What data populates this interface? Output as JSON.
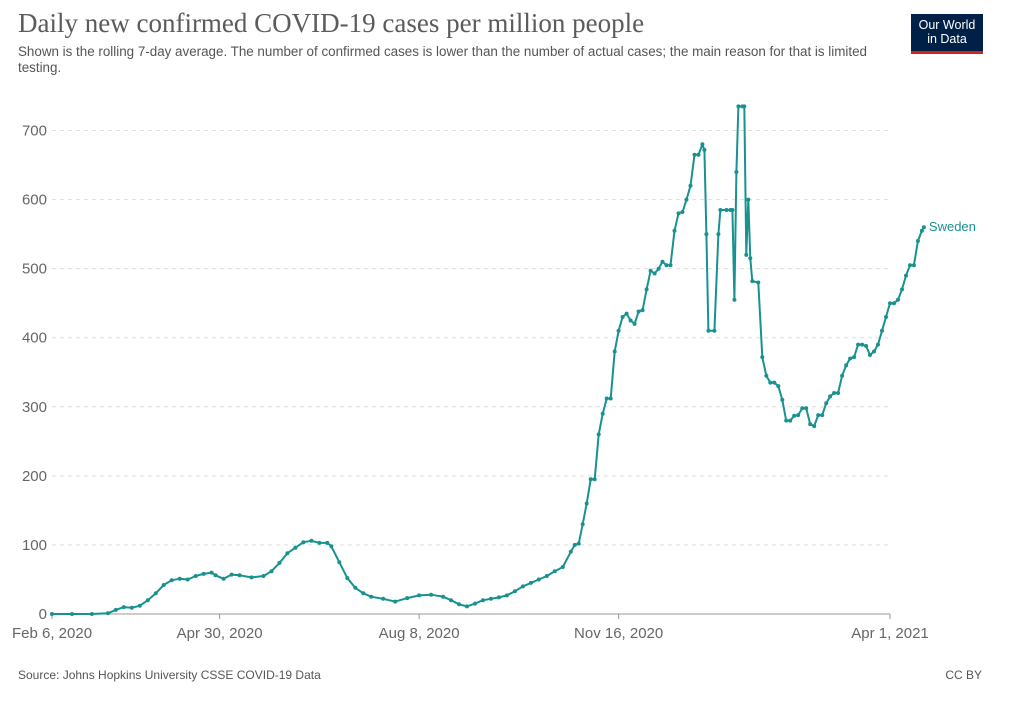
{
  "header": {
    "title": "Daily new confirmed COVID-19 cases per million people",
    "subtitle": "Shown is the rolling 7-day average. The number of confirmed cases is lower than the number of actual cases; the main reason for that is limited testing.",
    "logo_line1": "Our World",
    "logo_line2": "in Data"
  },
  "footer": {
    "source": "Source: Johns Hopkins University CSSE COVID-19 Data",
    "license": "CC BY"
  },
  "colors": {
    "series": "#18928f",
    "grid": "#dddddd",
    "axis": "#999999",
    "brand": "#002147",
    "brand_accent": "#ce261e"
  },
  "chart_data": {
    "type": "line",
    "title": "Daily new confirmed COVID-19 cases per million people",
    "xlabel": "",
    "ylabel": "",
    "ylim": [
      0,
      750
    ],
    "yticks": [
      0,
      100,
      200,
      300,
      400,
      500,
      600,
      700
    ],
    "xticks": [
      {
        "day": 0,
        "label": "Feb 6, 2020"
      },
      {
        "day": 84,
        "label": "Apr 30, 2020"
      },
      {
        "day": 184,
        "label": "Aug 8, 2020"
      },
      {
        "day": 284,
        "label": "Nov 16, 2020"
      },
      {
        "day": 420,
        "label": "Apr 1, 2021"
      }
    ],
    "x_domain": [
      0,
      420
    ],
    "grid": true,
    "series": [
      {
        "name": "Sweden",
        "x_unit": "days since Feb 6, 2020",
        "points": [
          [
            0,
            0
          ],
          [
            10,
            0
          ],
          [
            20,
            0
          ],
          [
            28,
            1
          ],
          [
            32,
            6
          ],
          [
            36,
            10
          ],
          [
            40,
            9
          ],
          [
            44,
            12
          ],
          [
            48,
            20
          ],
          [
            52,
            30
          ],
          [
            56,
            42
          ],
          [
            60,
            49
          ],
          [
            64,
            51
          ],
          [
            68,
            50
          ],
          [
            72,
            55
          ],
          [
            76,
            58
          ],
          [
            80,
            60
          ],
          [
            82,
            56
          ],
          [
            86,
            51
          ],
          [
            90,
            57
          ],
          [
            94,
            56
          ],
          [
            100,
            53
          ],
          [
            106,
            55
          ],
          [
            110,
            62
          ],
          [
            114,
            74
          ],
          [
            118,
            88
          ],
          [
            122,
            96
          ],
          [
            126,
            104
          ],
          [
            130,
            106
          ],
          [
            134,
            103
          ],
          [
            138,
            103
          ],
          [
            140,
            98
          ],
          [
            144,
            75
          ],
          [
            148,
            52
          ],
          [
            152,
            38
          ],
          [
            156,
            30
          ],
          [
            160,
            25
          ],
          [
            166,
            22
          ],
          [
            172,
            18
          ],
          [
            178,
            23
          ],
          [
            184,
            27
          ],
          [
            190,
            28
          ],
          [
            196,
            25
          ],
          [
            200,
            20
          ],
          [
            204,
            14
          ],
          [
            208,
            11
          ],
          [
            212,
            15
          ],
          [
            216,
            20
          ],
          [
            220,
            22
          ],
          [
            224,
            24
          ],
          [
            228,
            27
          ],
          [
            232,
            33
          ],
          [
            236,
            40
          ],
          [
            240,
            45
          ],
          [
            244,
            50
          ],
          [
            248,
            55
          ],
          [
            252,
            62
          ],
          [
            256,
            68
          ],
          [
            260,
            90
          ],
          [
            262,
            100
          ],
          [
            264,
            102
          ],
          [
            266,
            130
          ],
          [
            268,
            160
          ],
          [
            270,
            195
          ],
          [
            272,
            195
          ],
          [
            274,
            260
          ],
          [
            276,
            290
          ],
          [
            278,
            312
          ],
          [
            280,
            312
          ],
          [
            282,
            380
          ],
          [
            284,
            410
          ],
          [
            286,
            430
          ],
          [
            288,
            435
          ],
          [
            290,
            425
          ],
          [
            292,
            420
          ],
          [
            294,
            438
          ],
          [
            296,
            440
          ],
          [
            298,
            470
          ],
          [
            300,
            497
          ],
          [
            302,
            493
          ],
          [
            304,
            500
          ],
          [
            306,
            510
          ],
          [
            308,
            505
          ],
          [
            310,
            505
          ],
          [
            312,
            555
          ],
          [
            314,
            580
          ],
          [
            316,
            582
          ],
          [
            318,
            600
          ],
          [
            320,
            620
          ],
          [
            322,
            665
          ],
          [
            324,
            665
          ],
          [
            326,
            680
          ],
          [
            327,
            672
          ],
          [
            328,
            550
          ],
          [
            329,
            410
          ],
          [
            332,
            410
          ],
          [
            334,
            550
          ],
          [
            335,
            585
          ],
          [
            338,
            585
          ],
          [
            340,
            585
          ],
          [
            341,
            585
          ],
          [
            342,
            455
          ],
          [
            343,
            640
          ],
          [
            344,
            735
          ],
          [
            346,
            735
          ],
          [
            347,
            735
          ],
          [
            348,
            520
          ],
          [
            349,
            600
          ],
          [
            350,
            515
          ],
          [
            351,
            482
          ],
          [
            354,
            480
          ],
          [
            356,
            372
          ],
          [
            358,
            345
          ],
          [
            360,
            335
          ],
          [
            362,
            335
          ],
          [
            364,
            330
          ],
          [
            366,
            310
          ],
          [
            368,
            280
          ],
          [
            370,
            280
          ],
          [
            372,
            287
          ],
          [
            374,
            288
          ],
          [
            376,
            298
          ],
          [
            378,
            298
          ],
          [
            380,
            275
          ],
          [
            382,
            272
          ],
          [
            384,
            288
          ],
          [
            386,
            288
          ],
          [
            388,
            305
          ],
          [
            390,
            315
          ],
          [
            392,
            320
          ],
          [
            394,
            320
          ],
          [
            396,
            345
          ],
          [
            398,
            360
          ],
          [
            400,
            370
          ],
          [
            402,
            372
          ],
          [
            404,
            390
          ],
          [
            406,
            390
          ],
          [
            408,
            388
          ],
          [
            410,
            375
          ],
          [
            412,
            380
          ],
          [
            414,
            390
          ],
          [
            416,
            410
          ],
          [
            418,
            430
          ],
          [
            420,
            450
          ],
          [
            422,
            450
          ],
          [
            424,
            455
          ],
          [
            426,
            470
          ],
          [
            428,
            490
          ],
          [
            430,
            505
          ],
          [
            432,
            505
          ],
          [
            434,
            540
          ],
          [
            436,
            555
          ],
          [
            437,
            560
          ]
        ]
      }
    ]
  }
}
